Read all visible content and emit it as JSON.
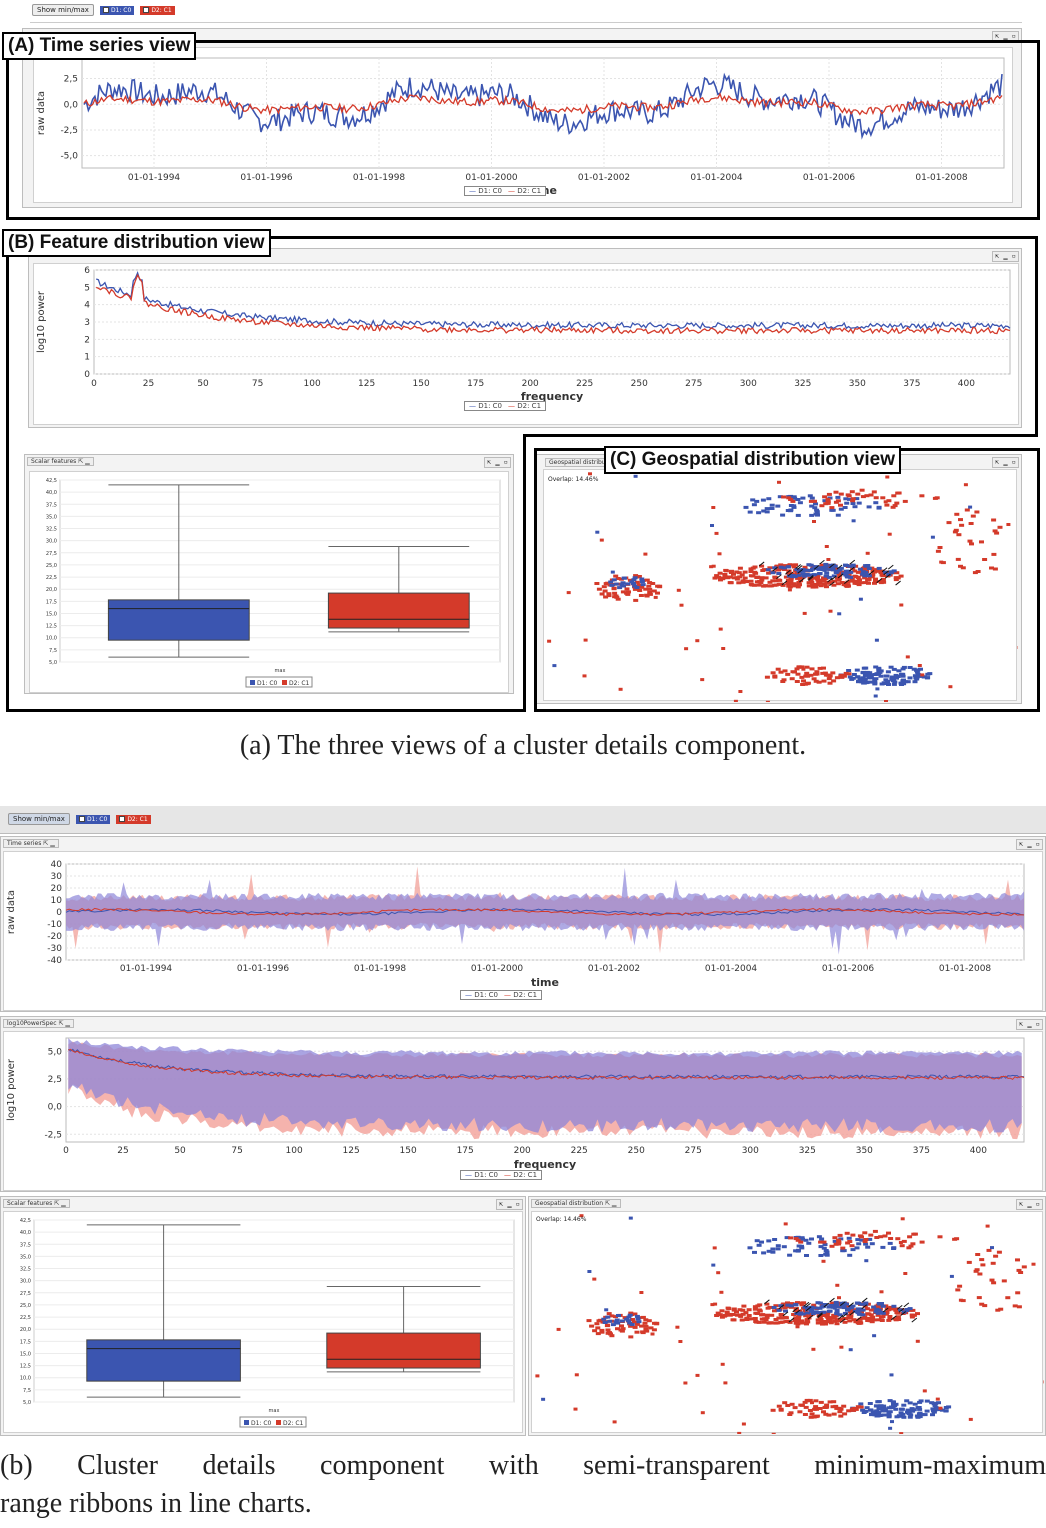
{
  "figure_a": {
    "toolbar": {
      "show_minmax": "Show min/max",
      "d1_check": "D1: C0",
      "d2_check": "D2: C1"
    },
    "callouts": {
      "time_series": "(A) Time series view",
      "feature": "(B) Feature distribution view",
      "geo": "(C) Geospatial distribution view"
    },
    "scalar_tab": "Scalar features",
    "geo_tab": "Geospatial distribu",
    "overlap": "Overlap: 14.46%",
    "caption": "(a)  The three views of a cluster details component."
  },
  "figure_b": {
    "toolbar": {
      "show_minmax": "Show min/max",
      "d1_check": "D1: C0",
      "d2_check": "D2: C1"
    },
    "ts_tab": "Time series",
    "feat_tab": "log10PowerSpec",
    "scalar_tab": "Scalar features",
    "geo_tab": "Geospatial distribution",
    "overlap": "Overlap: 14.46%",
    "caption_line1": "(b)  Cluster details component with semi-transparent minimum-maximum",
    "caption_line2": "range ribbons in line charts."
  },
  "legend": {
    "d1": "D1: C0",
    "d2": "D2: C1"
  },
  "colors": {
    "d1": "#3b55b0",
    "d2": "#d43a2a",
    "d1_ribbon": "#8d86d8",
    "d2_ribbon": "#f19a92"
  },
  "icons": {
    "window_controls": "minimize-maximize-icon",
    "checkbox": "checkbox-icon"
  },
  "chart_data": [
    {
      "id": "ts_a",
      "type": "line",
      "xlabel": "time",
      "ylabel": "raw data",
      "x_ticks": [
        "01-01-1994",
        "01-01-1996",
        "01-01-1998",
        "01-01-2000",
        "01-01-2002",
        "01-01-2004",
        "01-01-2006",
        "01-01-2008"
      ],
      "y_ticks": [
        "2,5",
        "0,0",
        "-2,5",
        "-5,0"
      ],
      "x_range": [
        "1993-01-01",
        "2009-06-01"
      ],
      "ylim": [
        -6.2,
        4.5
      ],
      "grid": true,
      "legend_position": "bottom",
      "series": [
        {
          "name": "D1: C0",
          "color": "#3b55b0",
          "amplitude": 2.6,
          "seed": 7
        },
        {
          "name": "D2: C1",
          "color": "#d43a2a",
          "amplitude": 0.9,
          "seed": 11
        }
      ]
    },
    {
      "id": "feat_a",
      "type": "line",
      "xlabel": "frequency",
      "ylabel": "log10 power",
      "x_ticks": [
        "0",
        "25",
        "50",
        "75",
        "100",
        "125",
        "150",
        "175",
        "200",
        "225",
        "250",
        "275",
        "300",
        "325",
        "350",
        "375",
        "400"
      ],
      "y_ticks": [
        "6",
        "5",
        "4",
        "3",
        "2",
        "1",
        "0"
      ],
      "xlim": [
        0,
        420
      ],
      "ylim": [
        0,
        6
      ],
      "grid": true,
      "legend_position": "bottom",
      "series": [
        {
          "name": "D1: C0",
          "color": "#3b55b0",
          "start": 5.4,
          "peak_x": 20,
          "peak_y": 5.9,
          "end": 2.8
        },
        {
          "name": "D2: C1",
          "color": "#d43a2a",
          "start": 5.2,
          "peak_x": 20,
          "peak_y": 5.8,
          "end": 2.5
        }
      ]
    },
    {
      "id": "box_a",
      "type": "box",
      "xlabel": "max",
      "y_ticks": [
        "42,5",
        "40,0",
        "37,5",
        "35,0",
        "32,5",
        "30,0",
        "27,5",
        "25,0",
        "22,5",
        "20,0",
        "17,5",
        "15,0",
        "12,5",
        "10,0",
        "7,5",
        "5,0"
      ],
      "ylim": [
        5,
        42.5
      ],
      "series": [
        {
          "name": "D1: C0",
          "color": "#3b55b0",
          "min": 6.0,
          "q1": 9.5,
          "median": 16.0,
          "q3": 17.8,
          "max": 41.5
        },
        {
          "name": "D2: C1",
          "color": "#d43a2a",
          "min": 11.2,
          "q1": 12.0,
          "median": 13.8,
          "q3": 19.2,
          "max": 28.8
        }
      ]
    },
    {
      "id": "ts_b",
      "type": "area",
      "xlabel": "time",
      "ylabel": "raw data",
      "x_ticks": [
        "01-01-1994",
        "01-01-1996",
        "01-01-1998",
        "01-01-2000",
        "01-01-2002",
        "01-01-2004",
        "01-01-2006",
        "01-01-2008"
      ],
      "y_ticks": [
        "40",
        "30",
        "20",
        "10",
        "0",
        "-10",
        "-20",
        "-30",
        "-40"
      ],
      "x_range": [
        "1993-01-01",
        "2009-06-01"
      ],
      "ylim": [
        -40,
        40
      ],
      "grid": true,
      "legend_position": "bottom",
      "series": [
        {
          "name": "D1: C0",
          "color": "#3b55b0",
          "band": 10,
          "spike": 22
        },
        {
          "name": "D2: C1",
          "color": "#d43a2a",
          "band": 9,
          "spike": 25
        }
      ]
    },
    {
      "id": "feat_b",
      "type": "area",
      "xlabel": "frequency",
      "ylabel": "log10 power",
      "x_ticks": [
        "0",
        "25",
        "50",
        "75",
        "100",
        "125",
        "150",
        "175",
        "200",
        "225",
        "250",
        "275",
        "300",
        "325",
        "350",
        "375",
        "400"
      ],
      "y_ticks": [
        "5,0",
        "2,5",
        "0,0",
        "-2,5"
      ],
      "xlim": [
        0,
        420
      ],
      "ylim": [
        -3.2,
        6.2
      ],
      "grid": true,
      "legend_position": "bottom",
      "series": [
        {
          "name": "D1: C0",
          "color": "#3b55b0",
          "upper": 4.6,
          "lower": -1.0
        },
        {
          "name": "D2: C1",
          "color": "#d43a2a",
          "upper": 4.4,
          "lower": -1.6
        }
      ]
    },
    {
      "id": "box_b",
      "type": "box",
      "xlabel": "max",
      "y_ticks": [
        "42,5",
        "40,0",
        "37,5",
        "35,0",
        "32,5",
        "30,0",
        "27,5",
        "25,0",
        "22,5",
        "20,0",
        "17,5",
        "15,0",
        "12,5",
        "10,0",
        "7,5",
        "5,0"
      ],
      "ylim": [
        5,
        42.5
      ],
      "series": [
        {
          "name": "D1: C0",
          "color": "#3b55b0",
          "min": 6.0,
          "q1": 9.3,
          "median": 16.0,
          "q3": 17.8,
          "max": 41.5
        },
        {
          "name": "D2: C1",
          "color": "#d43a2a",
          "min": 11.2,
          "q1": 12.0,
          "median": 13.8,
          "q3": 19.2,
          "max": 28.8
        }
      ]
    }
  ]
}
